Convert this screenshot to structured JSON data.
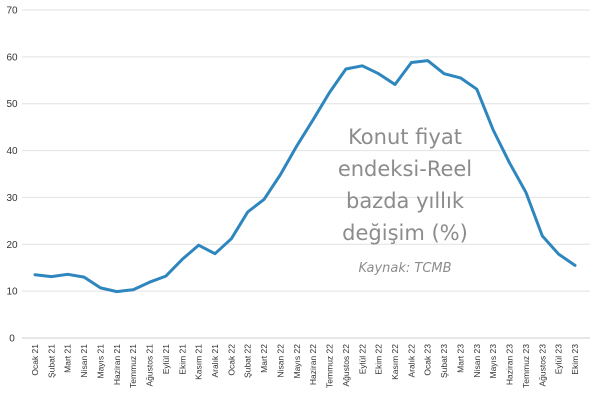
{
  "chart_data": {
    "type": "line",
    "title_lines": [
      "Konut fiyat",
      "endeksi-Reel",
      "bazda yıllık",
      "değişim (%)"
    ],
    "source": "Kaynak: TCMB",
    "ylim": [
      0,
      70
    ],
    "yticks": [
      0,
      10,
      20,
      30,
      40,
      50,
      60,
      70
    ],
    "grid": true,
    "line_color": "#2E86BE",
    "categories": [
      "Ocak 21",
      "Şubat 21",
      "Mart 21",
      "Nisan 21",
      "Mayıs 21",
      "Haziran 21",
      "Temmuz 21",
      "Ağustos 21",
      "Eylül 21",
      "Ekim 21",
      "Kasım 21",
      "Aralık 21",
      "Ocak 22",
      "Şubat 22",
      "Mart 22",
      "Nisan 22",
      "Mayıs 22",
      "Haziran 22",
      "Temmuz 22",
      "Ağustos 22",
      "Eylül 22",
      "Ekim 22",
      "Kasım 22",
      "Aralık 22",
      "Ocak 23",
      "Şubat 23",
      "Mart 23",
      "Nisan 23",
      "Mayıs 23",
      "Haziran 23",
      "Temmuz 23",
      "Ağustos 23",
      "Eylül 23",
      "Ekim 23"
    ],
    "values": [
      13.5,
      13.1,
      13.6,
      13.0,
      10.7,
      9.9,
      10.3,
      11.9,
      13.2,
      16.8,
      19.8,
      18.0,
      21.2,
      26.9,
      29.6,
      34.9,
      41.0,
      46.6,
      52.4,
      57.4,
      58.1,
      56.4,
      54.1,
      58.8,
      59.2,
      56.4,
      55.5,
      53.1,
      44.4,
      37.4,
      31.1,
      21.8,
      17.9,
      15.5
    ]
  }
}
